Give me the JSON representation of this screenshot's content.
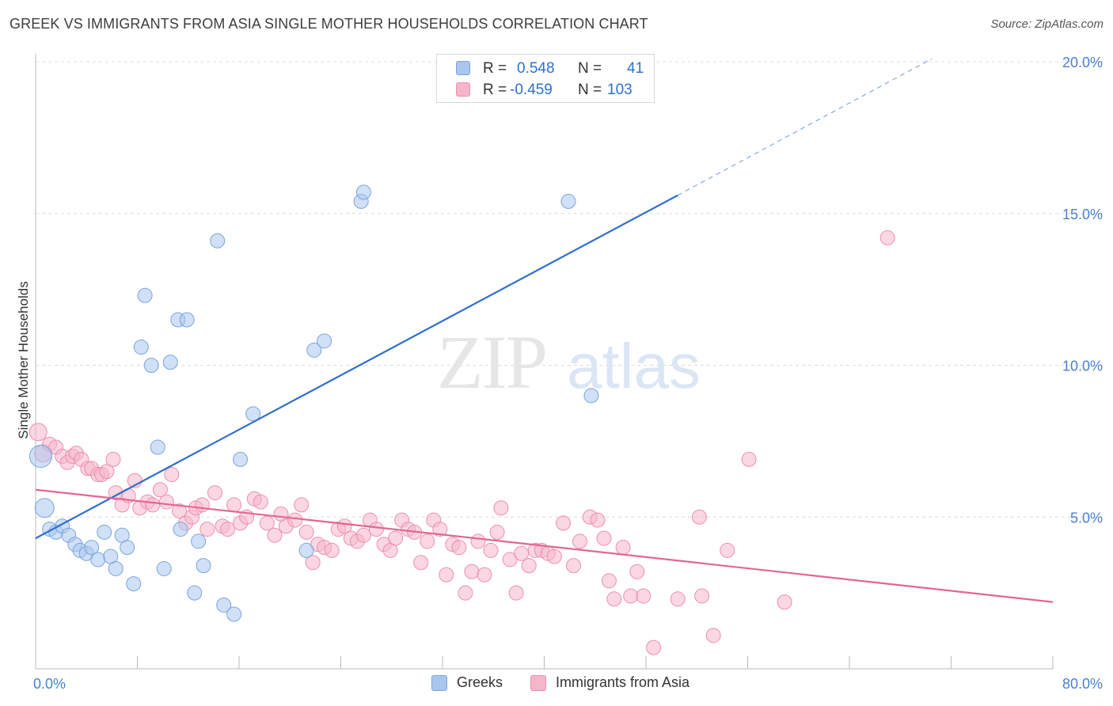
{
  "title": "GREEK VS IMMIGRANTS FROM ASIA SINGLE MOTHER HOUSEHOLDS CORRELATION CHART",
  "source": "Source: ZipAtlas.com",
  "watermark": {
    "part1": "ZIP",
    "part2": "atlas"
  },
  "colors": {
    "greek_fill": "#a9c6ef",
    "greek_stroke": "#7aa5de",
    "greek_line": "#2f6fcd",
    "asia_fill": "#f6b6ca",
    "asia_stroke": "#ee8fae",
    "asia_line": "#e36693",
    "tick": "#4a7fd0",
    "grid": "#dcdcdc"
  },
  "legend_top": [
    {
      "r_label": "R =",
      "r_value": "0.548",
      "n_label": "N =",
      "n_value": "41"
    },
    {
      "r_label": "R =",
      "r_value": "-0.459",
      "n_label": "N =",
      "n_value": "103"
    }
  ],
  "legend_bottom": [
    "Greeks",
    "Immigrants from Asia"
  ],
  "chart_data": {
    "type": "scatter",
    "title": "GREEK VS IMMIGRANTS FROM ASIA SINGLE MOTHER HOUSEHOLDS CORRELATION CHART",
    "xlabel": "",
    "ylabel": "Single Mother Households",
    "xlim": [
      0,
      80
    ],
    "ylim": [
      0,
      20
    ],
    "x_tick_labels": [
      "0.0%",
      "80.0%"
    ],
    "y_ticks": [
      5,
      10,
      15,
      20
    ],
    "y_tick_labels": [
      "5.0%",
      "10.0%",
      "15.0%",
      "20.0%"
    ],
    "grid": true,
    "legend_position": "top-center",
    "series": [
      {
        "name": "Greeks",
        "r": 0.548,
        "n": 41,
        "trend": {
          "x0": 0,
          "y0": 4.3,
          "x1": 50.5,
          "y1": 15.6,
          "dashed_to_x": 70.5,
          "dashed_to_y": 20.1
        },
        "points": [
          [
            0.4,
            7.0,
            14
          ],
          [
            0.7,
            5.3,
            12
          ],
          [
            1.1,
            4.6,
            9
          ],
          [
            1.6,
            4.5,
            9
          ],
          [
            2.1,
            4.7,
            9
          ],
          [
            2.6,
            4.4,
            9
          ],
          [
            3.1,
            4.1,
            9
          ],
          [
            3.5,
            3.9,
            9
          ],
          [
            4.0,
            3.8,
            9
          ],
          [
            4.4,
            4.0,
            9
          ],
          [
            4.9,
            3.6,
            9
          ],
          [
            5.4,
            4.5,
            9
          ],
          [
            5.9,
            3.7,
            9
          ],
          [
            6.3,
            3.3,
            9
          ],
          [
            6.8,
            4.4,
            9
          ],
          [
            7.2,
            4.0,
            9
          ],
          [
            7.7,
            2.8,
            9
          ],
          [
            8.3,
            10.6,
            9
          ],
          [
            8.6,
            12.3,
            9
          ],
          [
            9.1,
            10.0,
            9
          ],
          [
            9.6,
            7.3,
            9
          ],
          [
            10.1,
            3.3,
            9
          ],
          [
            10.6,
            10.1,
            9
          ],
          [
            11.2,
            11.5,
            9
          ],
          [
            11.4,
            4.6,
            9
          ],
          [
            11.9,
            11.5,
            9
          ],
          [
            12.5,
            2.5,
            9
          ],
          [
            12.8,
            4.2,
            9
          ],
          [
            13.2,
            3.4,
            9
          ],
          [
            14.3,
            14.1,
            9
          ],
          [
            14.8,
            2.1,
            9
          ],
          [
            15.6,
            1.8,
            9
          ],
          [
            16.1,
            6.9,
            9
          ],
          [
            17.1,
            8.4,
            9
          ],
          [
            21.3,
            3.9,
            9
          ],
          [
            21.9,
            10.5,
            9
          ],
          [
            22.7,
            10.8,
            9
          ],
          [
            25.6,
            15.4,
            9
          ],
          [
            25.8,
            15.7,
            9
          ],
          [
            41.9,
            15.4,
            9
          ],
          [
            43.7,
            9.0,
            9
          ]
        ]
      },
      {
        "name": "Immigrants from Asia",
        "r": -0.459,
        "n": 103,
        "trend": {
          "x0": 0,
          "y0": 5.9,
          "x1": 80,
          "y1": 2.2
        },
        "points": [
          [
            0.2,
            7.8,
            11
          ],
          [
            0.6,
            7.1,
            11
          ],
          [
            1.1,
            7.4,
            9
          ],
          [
            1.6,
            7.3,
            9
          ],
          [
            2.1,
            7.0,
            9
          ],
          [
            2.5,
            6.8,
            9
          ],
          [
            2.9,
            7.0,
            9
          ],
          [
            3.2,
            7.1,
            9
          ],
          [
            3.6,
            6.9,
            9
          ],
          [
            4.1,
            6.6,
            9
          ],
          [
            4.4,
            6.6,
            9
          ],
          [
            4.9,
            6.4,
            9
          ],
          [
            5.2,
            6.4,
            9
          ],
          [
            5.6,
            6.5,
            9
          ],
          [
            6.1,
            6.9,
            9
          ],
          [
            6.3,
            5.8,
            9
          ],
          [
            6.8,
            5.4,
            9
          ],
          [
            7.3,
            5.7,
            9
          ],
          [
            7.8,
            6.2,
            9
          ],
          [
            8.2,
            5.3,
            9
          ],
          [
            8.8,
            5.5,
            9
          ],
          [
            9.2,
            5.4,
            9
          ],
          [
            9.8,
            5.9,
            9
          ],
          [
            10.3,
            5.5,
            9
          ],
          [
            10.7,
            6.4,
            9
          ],
          [
            11.3,
            5.2,
            9
          ],
          [
            11.8,
            4.8,
            9
          ],
          [
            12.3,
            5.0,
            9
          ],
          [
            12.6,
            5.3,
            9
          ],
          [
            13.1,
            5.4,
            9
          ],
          [
            13.5,
            4.6,
            9
          ],
          [
            14.1,
            5.8,
            9
          ],
          [
            14.7,
            4.7,
            9
          ],
          [
            15.1,
            4.6,
            9
          ],
          [
            15.6,
            5.4,
            9
          ],
          [
            16.1,
            4.8,
            9
          ],
          [
            16.6,
            5.0,
            9
          ],
          [
            17.2,
            5.6,
            9
          ],
          [
            17.7,
            5.5,
            9
          ],
          [
            18.2,
            4.8,
            9
          ],
          [
            18.8,
            4.4,
            9
          ],
          [
            19.3,
            5.1,
            9
          ],
          [
            19.7,
            4.7,
            9
          ],
          [
            20.4,
            4.9,
            9
          ],
          [
            20.9,
            5.4,
            9
          ],
          [
            21.3,
            4.5,
            9
          ],
          [
            21.8,
            3.5,
            9
          ],
          [
            22.2,
            4.1,
            9
          ],
          [
            22.7,
            4.0,
            9
          ],
          [
            23.3,
            3.9,
            9
          ],
          [
            23.8,
            4.6,
            9
          ],
          [
            24.3,
            4.7,
            9
          ],
          [
            24.8,
            4.3,
            9
          ],
          [
            25.3,
            4.2,
            9
          ],
          [
            25.8,
            4.4,
            9
          ],
          [
            26.3,
            4.9,
            9
          ],
          [
            26.8,
            4.6,
            9
          ],
          [
            27.4,
            4.1,
            9
          ],
          [
            27.9,
            3.9,
            9
          ],
          [
            28.3,
            4.3,
            9
          ],
          [
            28.8,
            4.9,
            9
          ],
          [
            29.3,
            4.6,
            9
          ],
          [
            29.8,
            4.5,
            9
          ],
          [
            30.3,
            3.5,
            9
          ],
          [
            30.8,
            4.2,
            9
          ],
          [
            31.3,
            4.9,
            9
          ],
          [
            31.8,
            4.6,
            9
          ],
          [
            32.3,
            3.1,
            9
          ],
          [
            32.8,
            4.1,
            9
          ],
          [
            33.3,
            4.0,
            9
          ],
          [
            33.8,
            2.5,
            9
          ],
          [
            34.3,
            3.2,
            9
          ],
          [
            34.8,
            4.2,
            9
          ],
          [
            35.3,
            3.1,
            9
          ],
          [
            35.8,
            3.9,
            9
          ],
          [
            36.3,
            4.5,
            9
          ],
          [
            36.6,
            5.3,
            9
          ],
          [
            37.3,
            3.6,
            9
          ],
          [
            37.8,
            2.5,
            9
          ],
          [
            38.2,
            3.8,
            9
          ],
          [
            38.8,
            3.4,
            9
          ],
          [
            39.3,
            3.9,
            9
          ],
          [
            39.8,
            3.9,
            9
          ],
          [
            40.3,
            3.8,
            9
          ],
          [
            40.8,
            3.7,
            9
          ],
          [
            41.5,
            4.8,
            9
          ],
          [
            42.3,
            3.4,
            9
          ],
          [
            42.8,
            4.2,
            9
          ],
          [
            43.6,
            5.0,
            9
          ],
          [
            44.2,
            4.9,
            9
          ],
          [
            44.7,
            4.3,
            9
          ],
          [
            45.1,
            2.9,
            9
          ],
          [
            45.5,
            2.3,
            9
          ],
          [
            46.2,
            4.0,
            9
          ],
          [
            46.8,
            2.4,
            9
          ],
          [
            47.3,
            3.2,
            9
          ],
          [
            47.8,
            2.4,
            9
          ],
          [
            48.6,
            0.7,
            9
          ],
          [
            50.5,
            2.3,
            9
          ],
          [
            52.2,
            5.0,
            9
          ],
          [
            52.4,
            2.4,
            9
          ],
          [
            53.3,
            1.1,
            9
          ],
          [
            54.4,
            3.9,
            9
          ],
          [
            56.1,
            6.9,
            9
          ],
          [
            58.9,
            2.2,
            9
          ],
          [
            67.0,
            14.2,
            9
          ]
        ]
      }
    ]
  }
}
